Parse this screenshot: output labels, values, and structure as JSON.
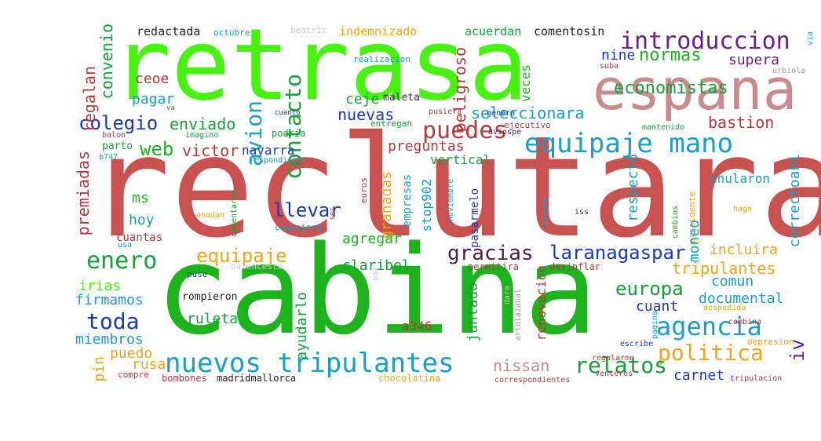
{
  "words": [
    {
      "text": "reclutara",
      "color": "#c9514f"
    },
    {
      "text": "cabina",
      "color": "#1db31d"
    },
    {
      "text": "retrasa",
      "color": "#47f20e"
    },
    {
      "text": "espana",
      "color": "#c98b8b"
    },
    {
      "text": "equipaje mano",
      "color": "#1a9ec8"
    },
    {
      "text": "nuevos tripulantes",
      "color": "#1a9ec8"
    },
    {
      "text": "introduccion",
      "color": "#6a1f8c"
    },
    {
      "text": "agencia",
      "color": "#1a9ec8"
    },
    {
      "text": "politica",
      "color": "#f2a51a"
    },
    {
      "text": "enero",
      "color": "#16a03a"
    },
    {
      "text": "puedes",
      "color": "#b33b3b"
    },
    {
      "text": "colegio",
      "color": "#1a3ab8"
    },
    {
      "text": "avion",
      "color": "#1a9ec8"
    },
    {
      "text": "contacto",
      "color": "#16a03a"
    },
    {
      "text": "normas",
      "color": "#1db31d"
    },
    {
      "text": "economistas",
      "color": "#16a03a"
    },
    {
      "text": "gracias",
      "color": "#4a1e4a"
    },
    {
      "text": "laranagaspar",
      "color": "#1a3ab8"
    },
    {
      "text": "equipaje",
      "color": "#f2a51a"
    },
    {
      "text": "relatos",
      "color": "#16a03a"
    },
    {
      "text": "toda",
      "color": "#1a3ab8"
    },
    {
      "text": "europa",
      "color": "#16a03a"
    },
    {
      "text": "llevar",
      "color": "#1a3ab8"
    },
    {
      "text": "web",
      "color": "#1db31d"
    },
    {
      "text": "victor",
      "color": "#b33b3b"
    },
    {
      "text": "enviado",
      "color": "#16a03a"
    },
    {
      "text": "nuevas",
      "color": "#1a3ab8"
    },
    {
      "text": "ceje",
      "color": "#16a03a"
    },
    {
      "text": "ceoe",
      "color": "#b33b3b"
    },
    {
      "text": "pagar",
      "color": "#1a9ec8"
    },
    {
      "text": "convenio",
      "color": "#16a03a"
    },
    {
      "text": "regalan",
      "color": "#b33b3b"
    },
    {
      "text": "peligroso",
      "color": "#b33b3b"
    },
    {
      "text": "veces",
      "color": "#1db31d"
    },
    {
      "text": "seleccionara",
      "color": "#1a9ec8"
    },
    {
      "text": "bastion",
      "color": "#b33b3b"
    },
    {
      "text": "supera",
      "color": "#6a1f8c"
    },
    {
      "text": "nine",
      "color": "#1a3ab8"
    },
    {
      "text": "redactada",
      "color": "#222222"
    },
    {
      "text": "octubre",
      "color": "#1a9ec8"
    },
    {
      "text": "beatriz",
      "color": "#cccccc"
    },
    {
      "text": "indemnizado",
      "color": "#f2a51a"
    },
    {
      "text": "acuerdan",
      "color": "#16a03a"
    },
    {
      "text": "comentosin",
      "color": "#222222"
    },
    {
      "text": "realizacion",
      "color": "#1a9ec8"
    },
    {
      "text": "suba",
      "color": "#b33b3b"
    },
    {
      "text": "urbiola",
      "color": "#999999"
    },
    {
      "text": "via",
      "color": "#1a9ec8"
    },
    {
      "text": "maleta",
      "color": "#4a1e4a"
    },
    {
      "text": "cuanto",
      "color": "#1a3ab8"
    },
    {
      "text": "pusiera",
      "color": "#b33b3b"
    },
    {
      "text": "genera",
      "color": "#1a3ab8"
    },
    {
      "text": "ejecutivo",
      "color": "#b33b3b"
    },
    {
      "text": "mantenido",
      "color": "#16a03a"
    },
    {
      "text": "entregan",
      "color": "#16a03a"
    },
    {
      "text": "aviospe",
      "color": "#4a1e4a"
    },
    {
      "text": "podria",
      "color": "#16a03a"
    },
    {
      "text": "imagino",
      "color": "#16a03a"
    },
    {
      "text": "va",
      "color": "#b33b3b"
    },
    {
      "text": "balon",
      "color": "#b33b3b"
    },
    {
      "text": "parto",
      "color": "#16a03a"
    },
    {
      "text": "b747",
      "color": "#1a9ec8"
    },
    {
      "text": "navarra",
      "color": "#1a3ab8"
    },
    {
      "text": "preguntas",
      "color": "#b33b3b"
    },
    {
      "text": "vertical",
      "color": "#16a03a"
    },
    {
      "text": "respecto",
      "color": "#1a9ec8"
    },
    {
      "text": "correctoahi",
      "color": "#1a9ec8"
    },
    {
      "text": "anularon",
      "color": "#1a9ec8"
    },
    {
      "text": "premiadas",
      "color": "#b33b3b"
    },
    {
      "text": "ms",
      "color": "#1db31d"
    },
    {
      "text": "hoy",
      "color": "#1a9ec8"
    },
    {
      "text": "cuantas",
      "color": "#b33b3b"
    },
    {
      "text": "respondieron",
      "color": "#1a9ec8"
    },
    {
      "text": "euros",
      "color": "#b33b3b"
    },
    {
      "text": "granadas",
      "color": "#f2a51a"
    },
    {
      "text": "empresas",
      "color": "#1a9ec8"
    },
    {
      "text": "stop902",
      "color": "#1a9ec8"
    },
    {
      "text": "pasarmelo",
      "color": "#1a3ab8"
    },
    {
      "text": "noviembre",
      "color": "#1a9ec8"
    },
    {
      "text": "oviedo",
      "color": "#1a9ec8"
    },
    {
      "text": "iss",
      "color": "#4a1e4a"
    },
    {
      "text": "presidente",
      "color": "#f2a51a"
    },
    {
      "text": "cambios",
      "color": "#1db31d"
    },
    {
      "text": "hago",
      "color": "#f2a51a"
    },
    {
      "text": "moneo",
      "color": "#1a9ec8"
    },
    {
      "text": "incluira",
      "color": "#f2a51a"
    },
    {
      "text": "iv",
      "color": "#6a1f8c"
    },
    {
      "text": "agregar",
      "color": "#1db31d"
    },
    {
      "text": "claribel",
      "color": "#16a03a"
    },
    {
      "text": "comentario",
      "color": "#16a03a"
    },
    {
      "text": "anadan",
      "color": "#f2a51a"
    },
    {
      "text": "consejera",
      "color": "#1a9ec8"
    },
    {
      "text": "ser",
      "color": "#b33b3b"
    },
    {
      "text": "usa",
      "color": "#1a9ec8"
    },
    {
      "text": "puse",
      "color": "#1a3ab8"
    },
    {
      "text": "baloncesto",
      "color": "#cccccc"
    },
    {
      "text": "irias",
      "color": "#47f20e"
    },
    {
      "text": "firmamos",
      "color": "#1a9ec8"
    },
    {
      "text": "ruleta",
      "color": "#16a03a"
    },
    {
      "text": "miembros",
      "color": "#1a9ec8"
    },
    {
      "text": "rompieron",
      "color": "#222222"
    },
    {
      "text": "ayudarlo",
      "color": "#16a03a"
    },
    {
      "text": "juntado",
      "color": "#16a03a"
    },
    {
      "text": "renovacion",
      "color": "#b33b3b"
    },
    {
      "text": "permitira",
      "color": "#b33b3b"
    },
    {
      "text": "desinflar",
      "color": "#b33b3b"
    },
    {
      "text": "tripulantes",
      "color": "#f2a51a"
    },
    {
      "text": "comun",
      "color": "#1a9ec8"
    },
    {
      "text": "documental",
      "color": "#1a9ec8"
    },
    {
      "text": "cuant",
      "color": "#1a3ab8"
    },
    {
      "text": "baw",
      "color": "#cccccc"
    },
    {
      "text": "dara",
      "color": "#cccccc"
    },
    {
      "text": "artolazabal",
      "color": "#999999"
    },
    {
      "text": "a346",
      "color": "#b33b3b"
    },
    {
      "text": "despedida",
      "color": "#f2a51a"
    },
    {
      "text": "combina",
      "color": "#b33b3b"
    },
    {
      "text": "pagina",
      "color": "#1a9ec8"
    },
    {
      "text": "escribe",
      "color": "#1a3ab8"
    },
    {
      "text": "depresion",
      "color": "#f2a51a"
    },
    {
      "text": "puedo",
      "color": "#f2a51a"
    },
    {
      "text": "pin",
      "color": "#f2a51a"
    },
    {
      "text": "rusa",
      "color": "#f2a51a"
    },
    {
      "text": "nissan",
      "color": "#c98b8b"
    },
    {
      "text": "compre",
      "color": "#b33b3b"
    },
    {
      "text": "bombones",
      "color": "#b33b3b"
    },
    {
      "text": "madridmallorca",
      "color": "#222222"
    },
    {
      "text": "chocolatina",
      "color": "#f2a51a"
    },
    {
      "text": "correspondientes",
      "color": "#b33b3b"
    },
    {
      "text": "venteros",
      "color": "#b33b3b"
    },
    {
      "text": "regalarme",
      "color": "#b33b3b"
    },
    {
      "text": "carnet",
      "color": "#1a3ab8"
    },
    {
      "text": "tripulacion",
      "color": "#b33b3b"
    }
  ]
}
